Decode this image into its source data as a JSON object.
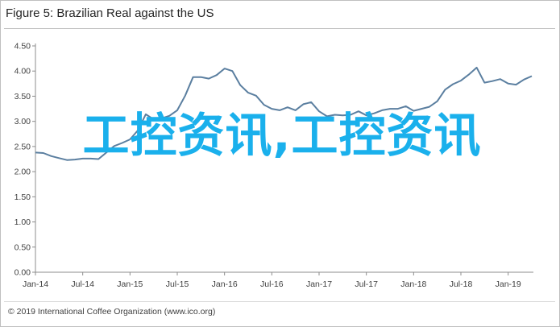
{
  "chart_data": {
    "type": "line",
    "title": "Figure 5: Brazilian Real against the US",
    "xlabel": "",
    "ylabel": "",
    "ylim": [
      0,
      4.5
    ],
    "yticks": [
      "0.00",
      "0.50",
      "1.00",
      "1.50",
      "2.00",
      "2.50",
      "3.00",
      "3.50",
      "4.00",
      "4.50"
    ],
    "xtick_labels": [
      "Jan-14",
      "Jul-14",
      "Jan-15",
      "Jul-15",
      "Jan-16",
      "Jul-16",
      "Jan-17",
      "Jul-17",
      "Jan-18",
      "Jul-18",
      "Jan-19"
    ],
    "grid": false,
    "legend": "none",
    "line_color": "#5b7fa0",
    "series": [
      {
        "values": [
          2.38,
          2.37,
          2.31,
          2.27,
          2.23,
          2.24,
          2.26,
          2.26,
          2.25,
          2.38,
          2.51,
          2.57,
          2.64,
          2.82,
          3.14,
          3.04,
          3.06,
          3.11,
          3.22,
          3.51,
          3.88,
          3.88,
          3.85,
          3.92,
          4.05,
          4.0,
          3.72,
          3.57,
          3.51,
          3.33,
          3.25,
          3.22,
          3.28,
          3.22,
          3.34,
          3.38,
          3.2,
          3.1,
          3.13,
          3.12,
          3.13,
          3.2,
          3.12,
          3.16,
          3.22,
          3.25,
          3.25,
          3.3,
          3.21,
          3.25,
          3.29,
          3.4,
          3.63,
          3.74,
          3.81,
          3.93,
          4.07,
          3.77,
          3.8,
          3.84,
          3.75,
          3.73,
          3.83,
          3.9
        ]
      }
    ]
  },
  "footer": {
    "copyright": "© 2019 International Coffee Organization (www.ico.org)"
  },
  "watermark": {
    "text": "工控资讯,工控资讯"
  }
}
